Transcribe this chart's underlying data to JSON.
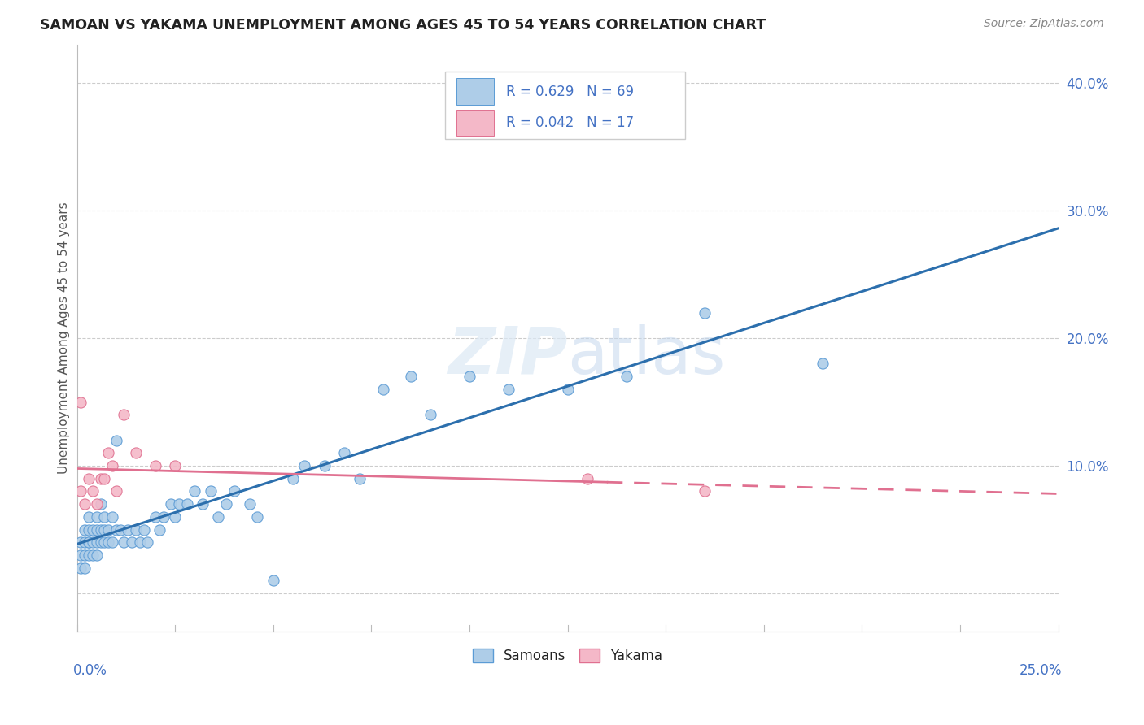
{
  "title": "SAMOAN VS YAKAMA UNEMPLOYMENT AMONG AGES 45 TO 54 YEARS CORRELATION CHART",
  "source": "Source: ZipAtlas.com",
  "ylabel": "Unemployment Among Ages 45 to 54 years",
  "xlim": [
    0.0,
    0.25
  ],
  "ylim": [
    -0.03,
    0.43
  ],
  "samoans_R": 0.629,
  "samoans_N": 69,
  "yakama_R": 0.042,
  "yakama_N": 17,
  "samoans_color": "#aecde8",
  "samoans_edge_color": "#5b9bd5",
  "samoans_line_color": "#2c6fad",
  "yakama_color": "#f4b8c8",
  "yakama_edge_color": "#e07090",
  "yakama_line_color": "#e07090",
  "grid_color": "#cccccc",
  "samoans_x": [
    0.001,
    0.001,
    0.001,
    0.002,
    0.002,
    0.002,
    0.002,
    0.003,
    0.003,
    0.003,
    0.003,
    0.003,
    0.004,
    0.004,
    0.004,
    0.005,
    0.005,
    0.005,
    0.005,
    0.006,
    0.006,
    0.006,
    0.007,
    0.007,
    0.007,
    0.008,
    0.008,
    0.009,
    0.009,
    0.01,
    0.01,
    0.011,
    0.012,
    0.013,
    0.014,
    0.015,
    0.016,
    0.017,
    0.018,
    0.02,
    0.021,
    0.022,
    0.024,
    0.025,
    0.026,
    0.028,
    0.03,
    0.032,
    0.034,
    0.036,
    0.038,
    0.04,
    0.044,
    0.046,
    0.05,
    0.055,
    0.058,
    0.063,
    0.068,
    0.072,
    0.078,
    0.085,
    0.09,
    0.1,
    0.11,
    0.125,
    0.14,
    0.16,
    0.19
  ],
  "samoans_y": [
    0.02,
    0.03,
    0.04,
    0.03,
    0.04,
    0.05,
    0.02,
    0.04,
    0.05,
    0.03,
    0.04,
    0.06,
    0.04,
    0.03,
    0.05,
    0.04,
    0.05,
    0.06,
    0.03,
    0.04,
    0.05,
    0.07,
    0.05,
    0.04,
    0.06,
    0.04,
    0.05,
    0.04,
    0.06,
    0.05,
    0.12,
    0.05,
    0.04,
    0.05,
    0.04,
    0.05,
    0.04,
    0.05,
    0.04,
    0.06,
    0.05,
    0.06,
    0.07,
    0.06,
    0.07,
    0.07,
    0.08,
    0.07,
    0.08,
    0.06,
    0.07,
    0.08,
    0.07,
    0.06,
    0.01,
    0.09,
    0.1,
    0.1,
    0.11,
    0.09,
    0.16,
    0.17,
    0.14,
    0.17,
    0.16,
    0.16,
    0.17,
    0.22,
    0.18
  ],
  "yakama_x": [
    0.001,
    0.001,
    0.002,
    0.003,
    0.004,
    0.005,
    0.006,
    0.007,
    0.008,
    0.009,
    0.01,
    0.012,
    0.015,
    0.02,
    0.025,
    0.13,
    0.16
  ],
  "yakama_y": [
    0.08,
    0.15,
    0.07,
    0.09,
    0.08,
    0.07,
    0.09,
    0.09,
    0.11,
    0.1,
    0.08,
    0.14,
    0.11,
    0.1,
    0.1,
    0.09,
    0.08
  ]
}
